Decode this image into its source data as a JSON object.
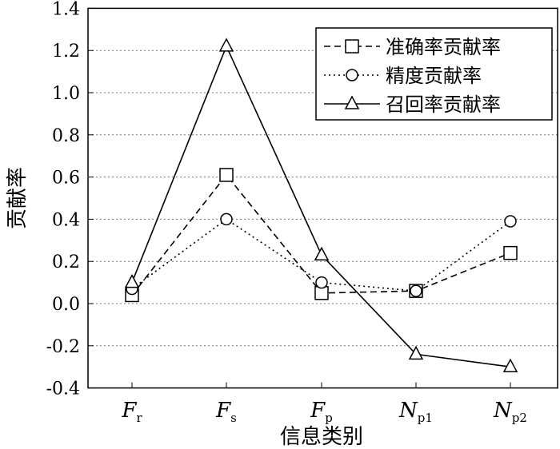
{
  "chart_data": {
    "type": "line",
    "title": "",
    "xlabel": "信息类别",
    "ylabel": "贡献率",
    "categories": [
      {
        "main": "F",
        "sub": "r"
      },
      {
        "main": "F",
        "sub": "s"
      },
      {
        "main": "F",
        "sub": "p"
      },
      {
        "main": "N",
        "sub": "p1"
      },
      {
        "main": "N",
        "sub": "p2"
      }
    ],
    "ylim": [
      -0.4,
      1.4
    ],
    "yticks": [
      "-0.4",
      "-0.2",
      "0.0",
      "0.2",
      "0.4",
      "0.6",
      "0.8",
      "1.0",
      "1.2",
      "1.4"
    ],
    "grid": "horizontal dotted",
    "legend_position": "top-right",
    "series": [
      {
        "name": "准确率贡献率",
        "marker": "square",
        "dash": "8,5",
        "values": [
          0.04,
          0.61,
          0.05,
          0.06,
          0.24
        ]
      },
      {
        "name": "精度贡献率",
        "marker": "circle",
        "dash": "2,4",
        "values": [
          0.07,
          0.4,
          0.1,
          0.06,
          0.39
        ]
      },
      {
        "name": "召回率贡献率",
        "marker": "triangle",
        "dash": "",
        "values": [
          0.1,
          1.22,
          0.23,
          -0.24,
          -0.3
        ]
      }
    ]
  }
}
